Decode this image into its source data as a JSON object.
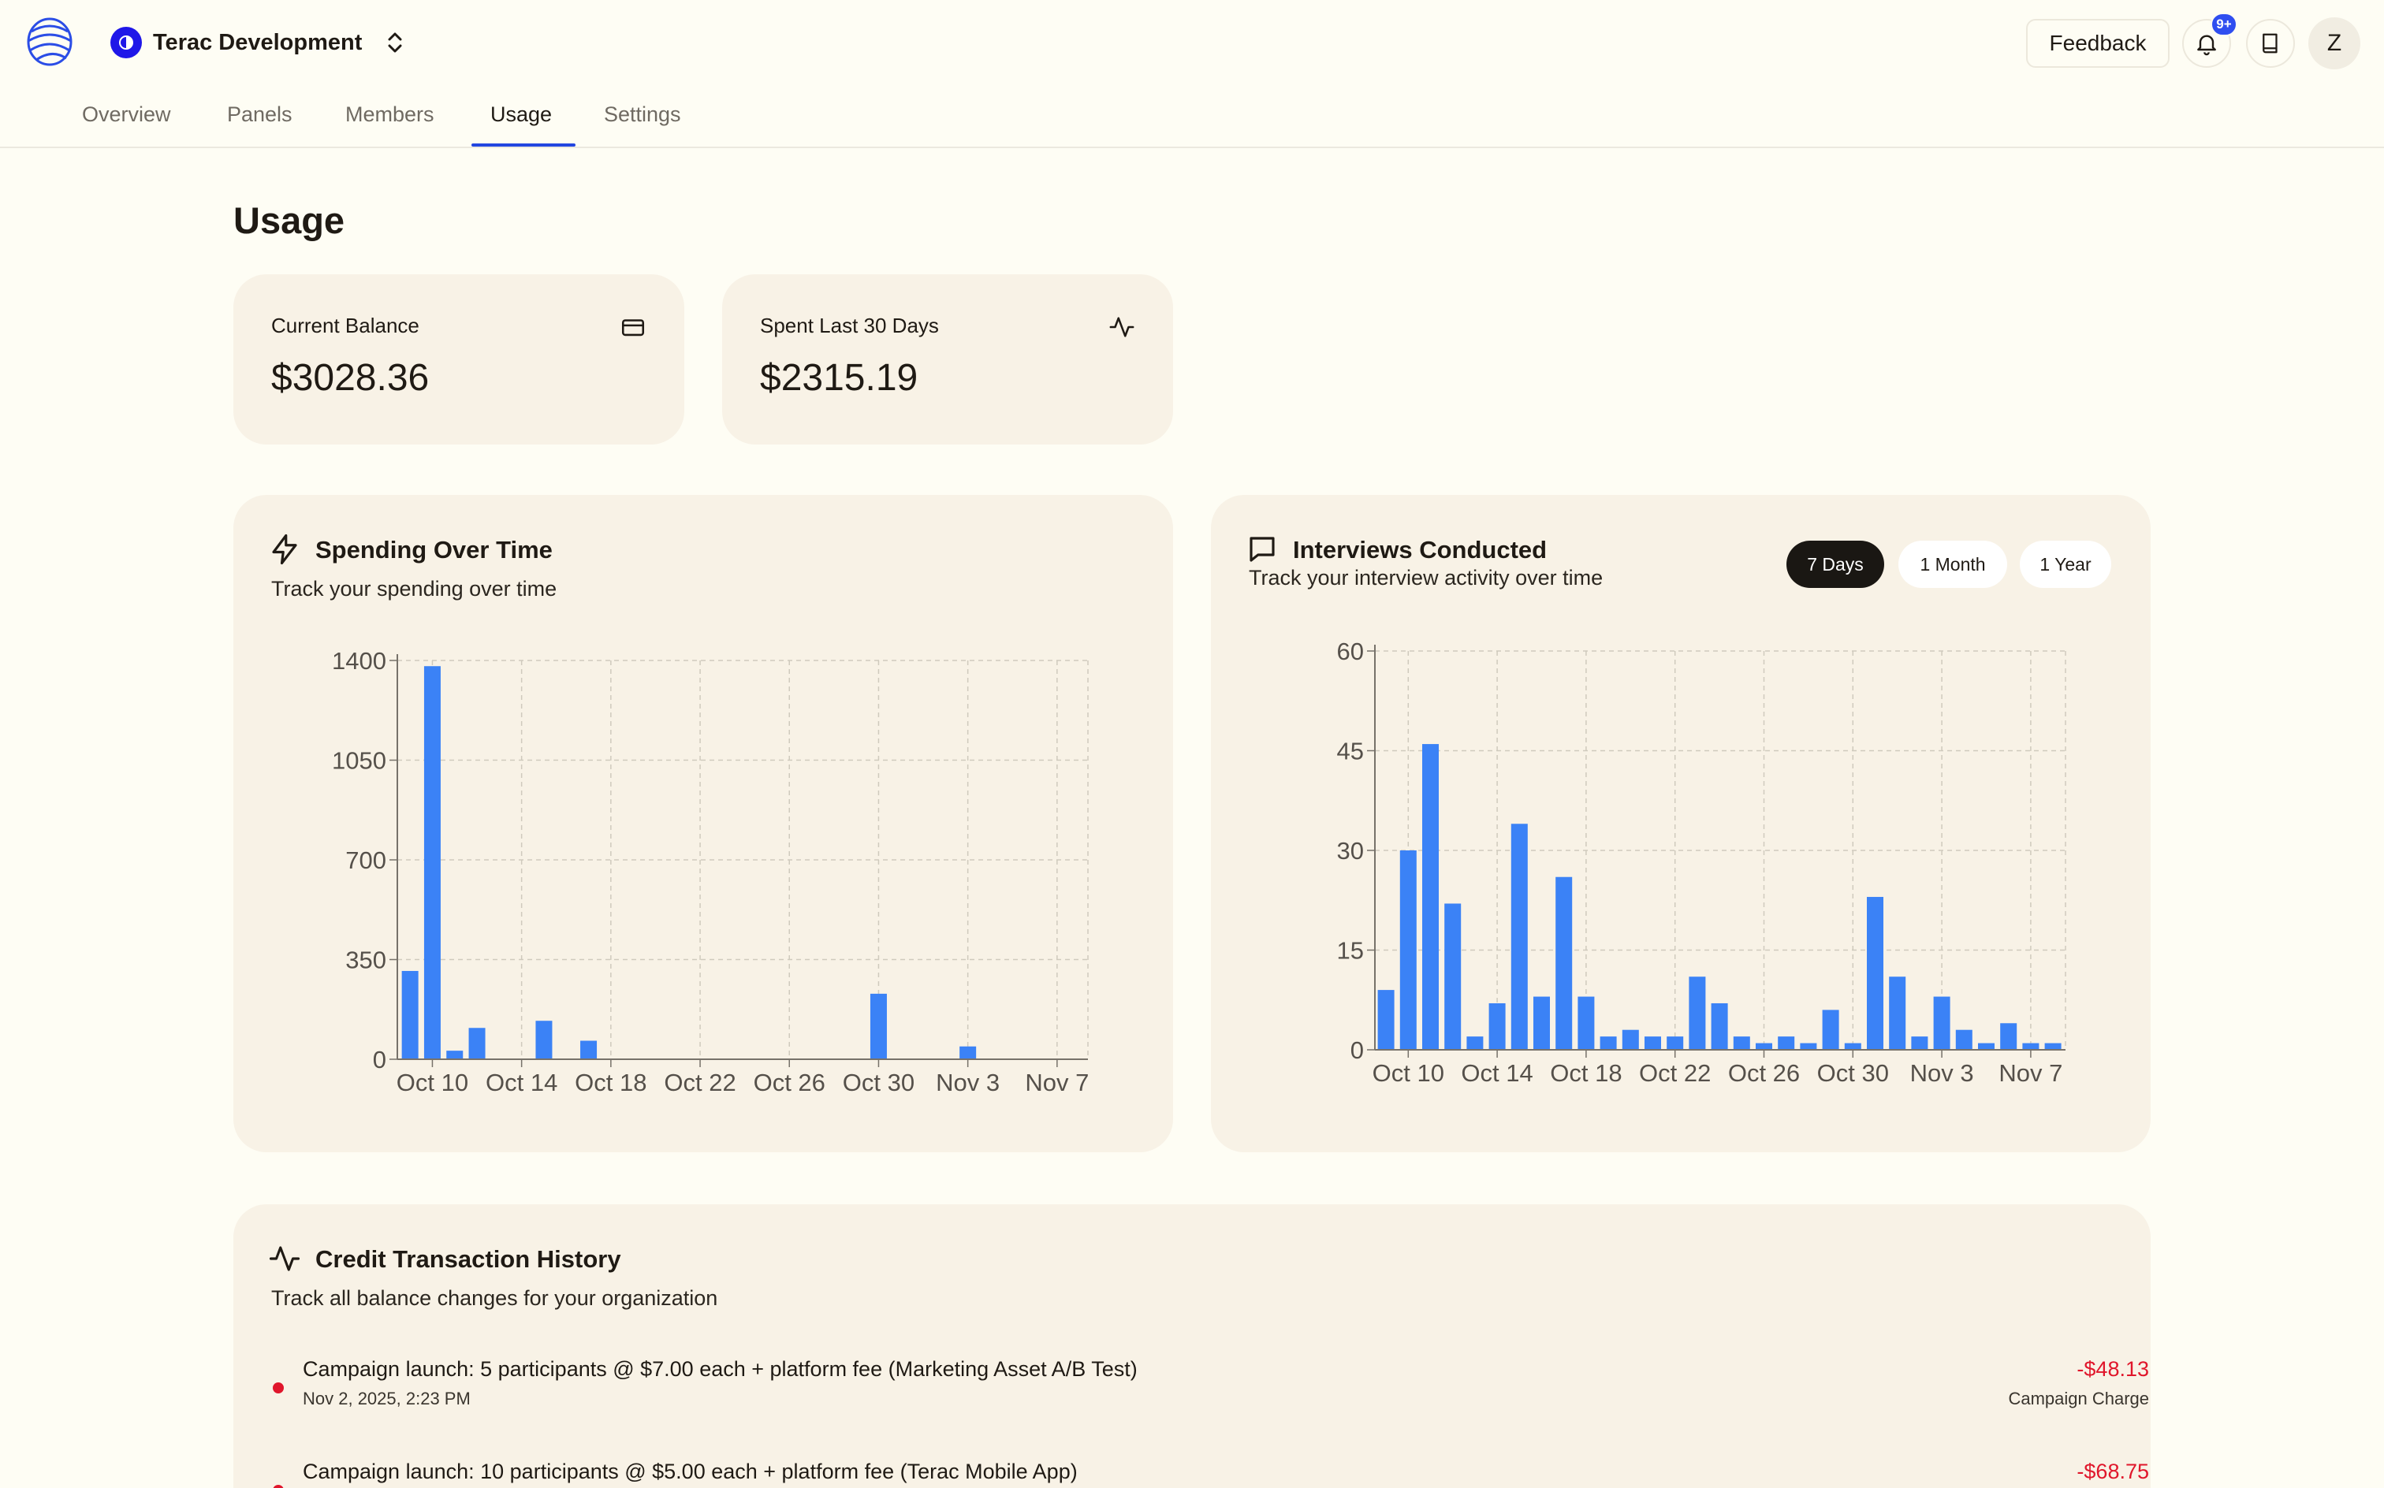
{
  "header": {
    "org_name": "Terac Development",
    "feedback_label": "Feedback",
    "notification_badge": "9+",
    "user_initial": "Z"
  },
  "tabs": [
    {
      "label": "Overview"
    },
    {
      "label": "Panels"
    },
    {
      "label": "Members"
    },
    {
      "label": "Usage",
      "active": true
    },
    {
      "label": "Settings"
    }
  ],
  "page": {
    "title": "Usage"
  },
  "stats": {
    "balance": {
      "label": "Current Balance",
      "value": "$3028.36",
      "icon": "credit-card-icon"
    },
    "spent": {
      "label": "Spent Last 30 Days",
      "value": "$2315.19",
      "icon": "activity-icon"
    }
  },
  "spending": {
    "title": "Spending Over Time",
    "subtitle": "Track your spending over time",
    "icon": "lightning-icon"
  },
  "interviews": {
    "title": "Interviews Conducted",
    "subtitle": "Track your interview activity over time",
    "icon": "message-icon",
    "ranges": [
      {
        "label": "7 Days",
        "active": true
      },
      {
        "label": "1 Month",
        "active": false
      },
      {
        "label": "1 Year",
        "active": false
      }
    ]
  },
  "transactions": {
    "title": "Credit Transaction History",
    "subtitle": "Track all balance changes for your organization",
    "icon": "activity-icon",
    "items": [
      {
        "description": "Campaign launch: 5 participants @ $7.00 each + platform fee (Marketing Asset A/B Test)",
        "date": "Nov 2, 2025, 2:23 PM",
        "amount": "-$48.13",
        "type": "Campaign Charge"
      },
      {
        "description": "Campaign launch: 10 participants @ $5.00 each + platform fee (Terac Mobile App)",
        "date": "",
        "amount": "-$68.75",
        "type": ""
      }
    ]
  },
  "colors": {
    "accent": "#2346e0",
    "bar": "#3b82f6",
    "negative": "#e0162b",
    "card": "#f8f2e6",
    "background": "#fefdf4"
  },
  "chart_data": [
    {
      "type": "bar",
      "x_ticks": [
        "Oct 10",
        "Oct 14",
        "Oct 18",
        "Oct 22",
        "Oct 26",
        "Oct 30",
        "Nov 3",
        "Nov 7"
      ],
      "y_ticks": [
        0,
        350,
        700,
        1050,
        1400
      ],
      "ylim": [
        0,
        1400
      ],
      "start_date": "2025-10-09",
      "x": [
        "Oct 9",
        "Oct 10",
        "Oct 11",
        "Oct 12",
        "Oct 13",
        "Oct 14",
        "Oct 15",
        "Oct 16",
        "Oct 17",
        "Oct 18",
        "Oct 19",
        "Oct 20",
        "Oct 21",
        "Oct 22",
        "Oct 23",
        "Oct 24",
        "Oct 25",
        "Oct 26",
        "Oct 27",
        "Oct 28",
        "Oct 29",
        "Oct 30",
        "Oct 31",
        "Nov 1",
        "Nov 2",
        "Nov 3",
        "Nov 4",
        "Nov 5",
        "Nov 6",
        "Nov 7"
      ],
      "values": [
        310,
        1380,
        30,
        110,
        0,
        0,
        135,
        0,
        65,
        0,
        0,
        0,
        0,
        0,
        0,
        0,
        0,
        0,
        0,
        0,
        0,
        230,
        0,
        0,
        0,
        45,
        0,
        0,
        0,
        0
      ],
      "grid": true
    },
    {
      "type": "bar",
      "x_ticks": [
        "Oct 10",
        "Oct 14",
        "Oct 18",
        "Oct 22",
        "Oct 26",
        "Oct 30",
        "Nov 3",
        "Nov 7"
      ],
      "y_ticks": [
        0,
        15,
        30,
        45,
        60
      ],
      "ylim": [
        0,
        60
      ],
      "x": [
        "Oct 9",
        "Oct 10",
        "Oct 11",
        "Oct 12",
        "Oct 13",
        "Oct 14",
        "Oct 15",
        "Oct 16",
        "Oct 17",
        "Oct 18",
        "Oct 19",
        "Oct 20",
        "Oct 21",
        "Oct 22",
        "Oct 23",
        "Oct 24",
        "Oct 25",
        "Oct 26",
        "Oct 27",
        "Oct 28",
        "Oct 29",
        "Oct 30",
        "Oct 31",
        "Nov 1",
        "Nov 2",
        "Nov 3",
        "Nov 4",
        "Nov 5",
        "Nov 6",
        "Nov 7",
        "Nov 8",
        "Nov 9"
      ],
      "values": [
        9,
        30,
        46,
        22,
        2,
        7,
        34,
        8,
        26,
        8,
        2,
        3,
        2,
        2,
        11,
        7,
        2,
        1,
        2,
        1,
        6,
        1,
        23,
        11,
        2,
        8,
        3,
        1,
        4,
        1,
        1,
        0
      ],
      "grid": true
    }
  ]
}
